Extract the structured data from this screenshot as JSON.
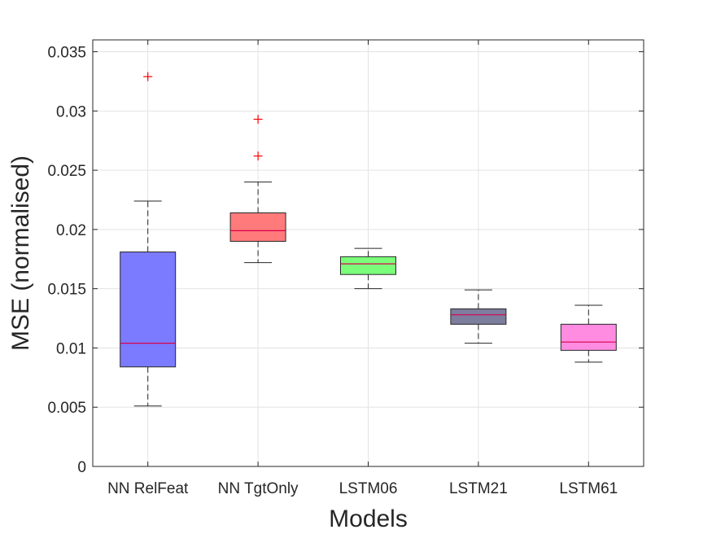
{
  "chart_data": {
    "type": "boxplot",
    "title": "",
    "xlabel": "Models",
    "ylabel": "MSE (normalised)",
    "ylim": [
      0,
      0.036
    ],
    "grid": true,
    "yticks": [
      0,
      0.005,
      0.01,
      0.015,
      0.02,
      0.025,
      0.03,
      0.035
    ],
    "ytick_labels": [
      "0",
      "0.005",
      "0.01",
      "0.015",
      "0.02",
      "0.025",
      "0.03",
      "0.035"
    ],
    "categories": [
      "NN RelFeat",
      "NN TgtOnly",
      "LSTM06",
      "LSTM21",
      "LSTM61"
    ],
    "boxes": [
      {
        "name": "NN RelFeat",
        "color": "#7b7bff",
        "whisker_low": 0.0051,
        "q1": 0.0084,
        "median": 0.0104,
        "q3": 0.0181,
        "whisker_high": 0.0224,
        "outliers": [
          0.0329
        ]
      },
      {
        "name": "NN TgtOnly",
        "color": "#ff7b7b",
        "whisker_low": 0.0172,
        "q1": 0.019,
        "median": 0.0199,
        "q3": 0.0214,
        "whisker_high": 0.024,
        "outliers": [
          0.0293,
          0.0262
        ]
      },
      {
        "name": "LSTM06",
        "color": "#7bff7b",
        "whisker_low": 0.015,
        "q1": 0.0162,
        "median": 0.0171,
        "q3": 0.0177,
        "whisker_high": 0.0184,
        "outliers": []
      },
      {
        "name": "LSTM21",
        "color": "#7d7d9e",
        "whisker_low": 0.0104,
        "q1": 0.012,
        "median": 0.0128,
        "q3": 0.0133,
        "whisker_high": 0.0149,
        "outliers": []
      },
      {
        "name": "LSTM61",
        "color": "#ff8ce0",
        "whisker_low": 0.0088,
        "q1": 0.0098,
        "median": 0.0105,
        "q3": 0.012,
        "whisker_high": 0.0136,
        "outliers": []
      }
    ],
    "median_color": "#d9004c",
    "outlier_color": "#ff0000"
  }
}
